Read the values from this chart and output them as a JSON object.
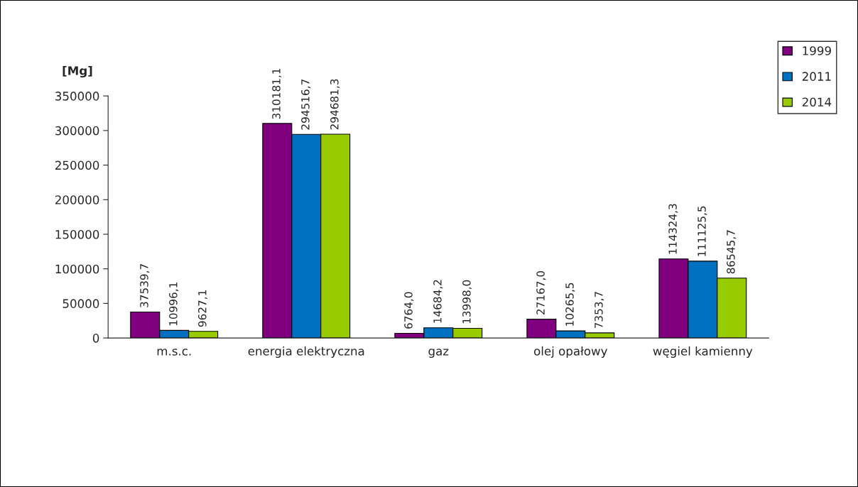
{
  "chart_data": {
    "type": "bar",
    "ylabel": "[Mg]",
    "categories": [
      "m.s.c.",
      "energia elektryczna",
      "gaz",
      "olej opałowy",
      "węgiel kamienny"
    ],
    "series": [
      {
        "name": "1999",
        "color": "#800080",
        "values": [
          37539.7,
          310181.1,
          6764.0,
          27167.0,
          114324.3
        ],
        "value_labels": [
          "37539,7",
          "310181,1",
          "6764,0",
          "27167,0",
          "114324,3"
        ]
      },
      {
        "name": "2011",
        "color": "#0070c0",
        "values": [
          10996.1,
          294516.7,
          14684.2,
          10265.5,
          111125.5
        ],
        "value_labels": [
          "10996,1",
          "294516,7",
          "14684,2",
          "10265,5",
          "111125,5"
        ]
      },
      {
        "name": "2014",
        "color": "#99cc00",
        "values": [
          9627.1,
          294681.3,
          13998.0,
          7353.7,
          86545.7
        ],
        "value_labels": [
          "9627,1",
          "294681,3",
          "13998,0",
          "7353,7",
          "86545,7"
        ]
      }
    ],
    "ylim": [
      0,
      350000
    ],
    "yticks": [
      0,
      50000,
      100000,
      150000,
      200000,
      250000,
      300000,
      350000
    ],
    "grid": false,
    "legend": "top right"
  }
}
